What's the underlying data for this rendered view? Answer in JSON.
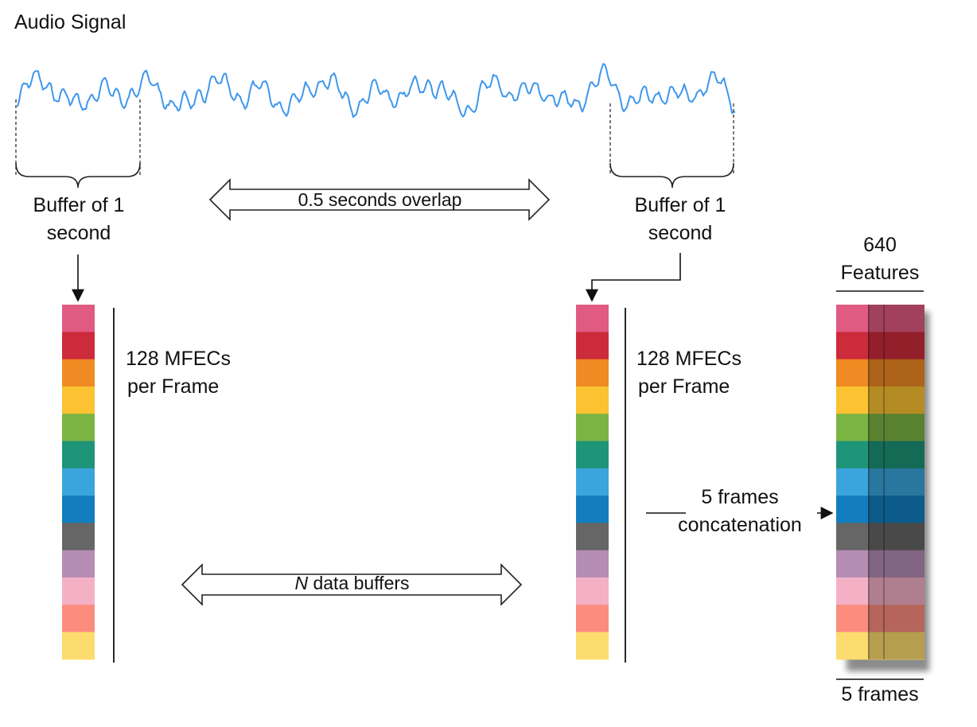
{
  "title": "Audio Signal",
  "left_buffer_label": [
    "Buffer of 1",
    "second"
  ],
  "right_buffer_label": [
    "Buffer of 1",
    "second"
  ],
  "overlap_label": "0.5 seconds overlap",
  "n_buffers_label_italic": "N",
  "n_buffers_label_rest": " data buffers",
  "left_frame_label": [
    "128 MFECs",
    "per Frame"
  ],
  "right_frame_label": [
    "128 MFECs",
    "per Frame"
  ],
  "concat_label": [
    "5 frames",
    "concatenation"
  ],
  "features_label": [
    "640",
    "Features"
  ],
  "frames_label": "5 frames",
  "colors": {
    "waveform": "#3e97ec",
    "segments": [
      "#e05a82",
      "#cc2b3c",
      "#f08a23",
      "#fbc232",
      "#7cb443",
      "#1e9478",
      "#3aa4dc",
      "#127ebf",
      "#666666",
      "#b48cb4",
      "#f4b1c6",
      "#fb8c7e",
      "#fcdc6e"
    ]
  }
}
